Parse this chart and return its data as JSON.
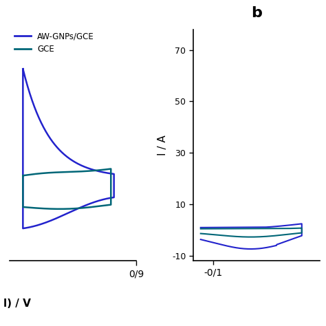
{
  "title_b": "b",
  "ylabel": "I / A",
  "xlabel": "l) / V",
  "legend_labels": [
    "AW-GNPs/GCE",
    "GCE"
  ],
  "aw_color": "#2222cc",
  "gce_color": "#006677",
  "ax_left_xtick": "0/9",
  "ax_right_xtick": "-0/1",
  "ax_right_yticks": [
    -10,
    10,
    30,
    50,
    70
  ],
  "background_color": "#ffffff"
}
